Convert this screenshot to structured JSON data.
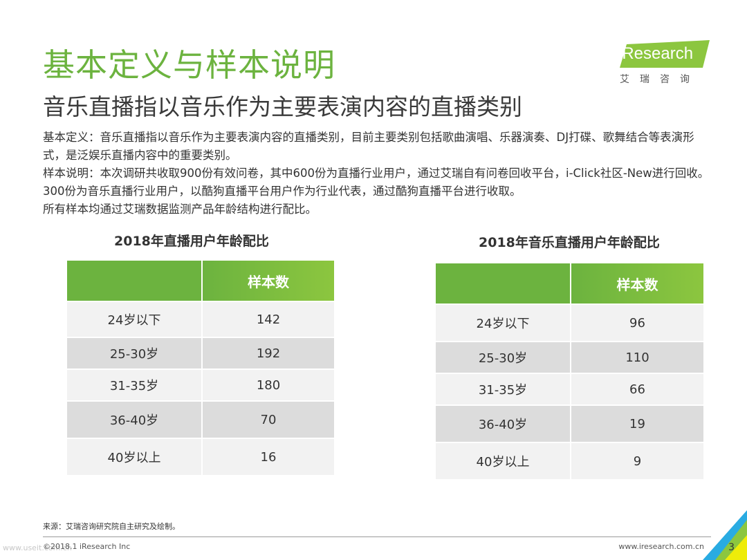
{
  "header": {
    "title": "基本定义与样本说明",
    "subtitle": "音乐直播指以音乐作为主要表演内容的直播类别"
  },
  "logo": {
    "brand_text": "iResearch",
    "cn_text": "艾瑞咨询",
    "accent_color": "#8cc63f"
  },
  "description": {
    "lines": [
      "基本定义：音乐直播指以音乐作为主要表演内容的直播类别，目前主要类别包括歌曲演唱、乐器演奏、DJ打碟、歌舞结合等表演形式，是泛娱乐直播内容中的重要类别。",
      "样本说明：本次调研共收取900份有效问卷，其中600份为直播行业用户，通过艾瑞自有问卷回收平台，i-Click社区-New进行回收。300份为音乐直播行业用户，以酷狗直播平台用户作为行业代表，通过酷狗直播平台进行收取。",
      "所有样本均通过艾瑞数据监测产品年龄结构进行配比。"
    ]
  },
  "tables": [
    {
      "title": "2018年直播用户年龄配比",
      "header": [
        "",
        "样本数"
      ],
      "rows": [
        {
          "label": "24岁以下",
          "value": "142"
        },
        {
          "label": "25-30岁",
          "value": "192"
        },
        {
          "label": "31-35岁",
          "value": "180"
        },
        {
          "label": "36-40岁",
          "value": "70"
        },
        {
          "label": "40岁以上",
          "value": "16"
        }
      ]
    },
    {
      "title": "2018年音乐直播用户年龄配比",
      "header": [
        "",
        "样本数"
      ],
      "rows": [
        {
          "label": "24岁以下",
          "value": "96"
        },
        {
          "label": "25-30岁",
          "value": "110"
        },
        {
          "label": "31-35岁",
          "value": "66"
        },
        {
          "label": "36-40岁",
          "value": "19"
        },
        {
          "label": "40岁以上",
          "value": "9"
        }
      ]
    }
  ],
  "footer": {
    "source": "来源：艾瑞咨询研究院自主研究及绘制。",
    "copyright": "©2018.1 iResearch Inc",
    "watermark": "www.useit.com.cn",
    "website": "www.iresearch.com.cn",
    "page_number": "3"
  },
  "colors": {
    "brand_green": "#6cb33f",
    "light_green": "#8cc63f",
    "cyan_accent": "#29abe2",
    "row_light": "#f2f2f2",
    "row_dark": "#dcdcdc"
  }
}
